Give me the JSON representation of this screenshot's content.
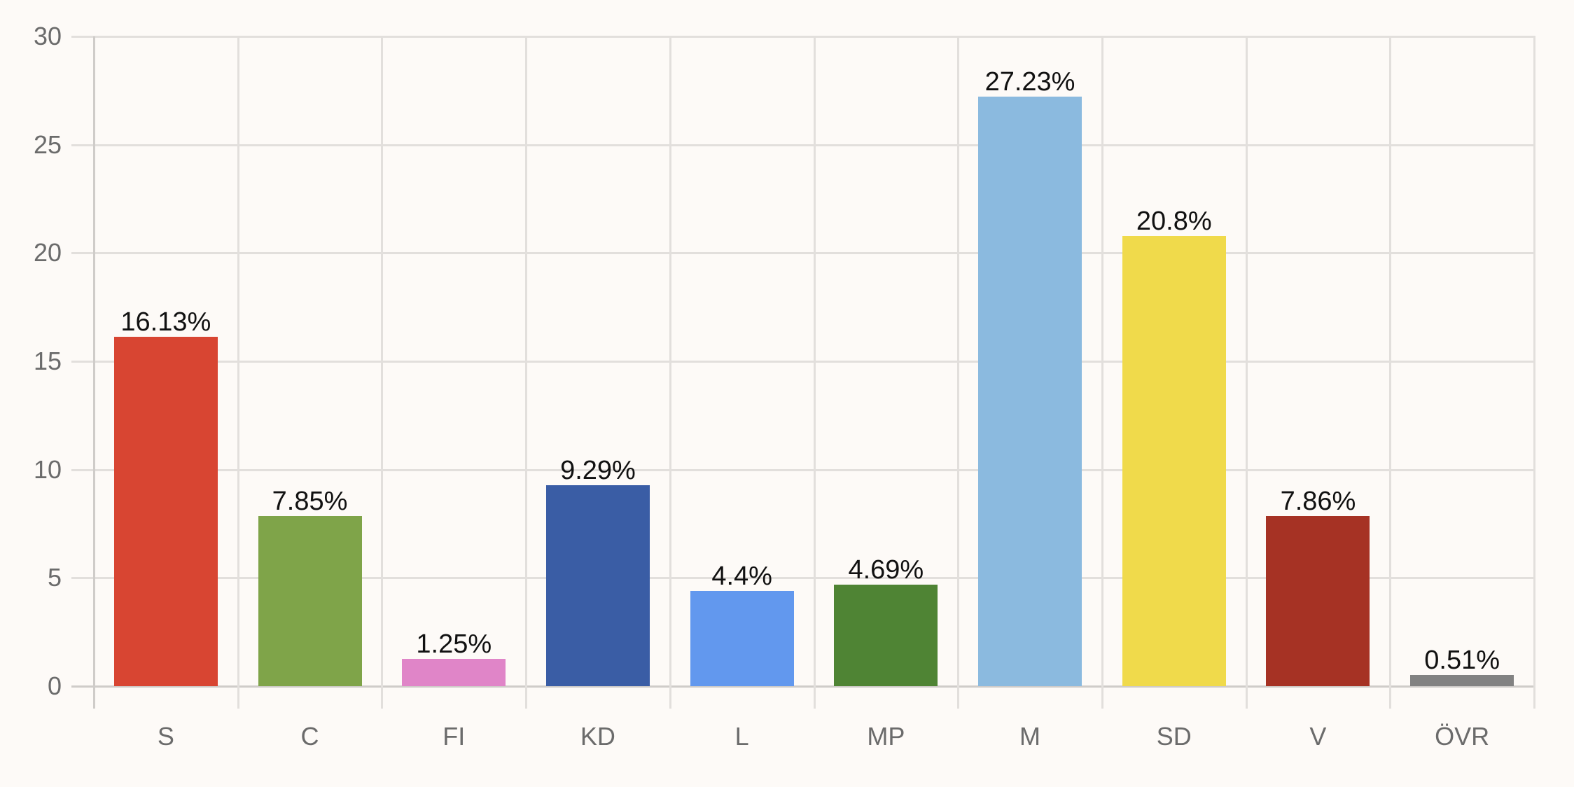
{
  "chart_data": {
    "type": "bar",
    "title": "",
    "xlabel": "",
    "ylabel": "",
    "ylim": [
      0,
      30
    ],
    "yticks": [
      0,
      5,
      10,
      15,
      20,
      25,
      30
    ],
    "grid": true,
    "legend": null,
    "categories": [
      "S",
      "C",
      "FI",
      "KD",
      "L",
      "MP",
      "M",
      "SD",
      "V",
      "ÖVR"
    ],
    "values": [
      16.13,
      7.85,
      1.25,
      9.29,
      4.4,
      4.69,
      27.23,
      20.8,
      7.86,
      0.51
    ],
    "data_labels": [
      "16.13%",
      "7.85%",
      "1.25%",
      "9.29%",
      "4.4%",
      "4.69%",
      "27.23%",
      "20.8%",
      "7.86%",
      "0.51%"
    ],
    "colors": [
      "#d84532",
      "#7fa449",
      "#e085c8",
      "#3a5da5",
      "#6298ee",
      "#4f8434",
      "#8bbadf",
      "#f0da4b",
      "#a63224",
      "#828282"
    ]
  },
  "style": {
    "background": "#fdfaf7",
    "grid_color": "#e2dfdc",
    "axis_color": "#cfccc9",
    "tick_label_color": "#6b6b6b",
    "data_label_color": "#111111"
  }
}
